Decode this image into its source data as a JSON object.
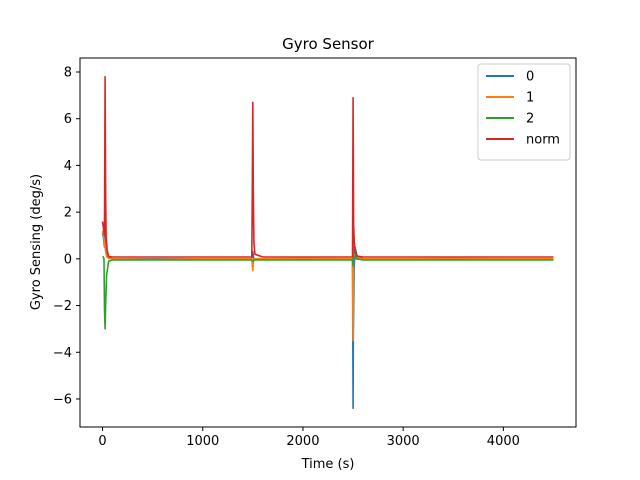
{
  "chart_data": {
    "type": "line",
    "title": "Gyro Sensor",
    "xlabel": "Time (s)",
    "ylabel": "Gyro Sensing (deg/s)",
    "xlim": [
      -225,
      4725
    ],
    "ylim": [
      -7.2,
      8.6
    ],
    "xticks": [
      0,
      1000,
      2000,
      3000,
      4000
    ],
    "yticks": [
      -6,
      -4,
      -2,
      0,
      2,
      4,
      6,
      8
    ],
    "grid": false,
    "legend": {
      "placement": "top-right"
    },
    "series": [
      {
        "name": "0",
        "color": "#1f77b4",
        "x": [
          0,
          10,
          20,
          25,
          30,
          40,
          60,
          100,
          500,
          1000,
          1490,
          1500,
          1505,
          1510,
          1520,
          1600,
          2000,
          2495,
          2500,
          2502,
          2510,
          2520,
          2540,
          2600,
          3000,
          3500,
          4000,
          4500
        ],
        "y": [
          1.1,
          0.9,
          0.5,
          4.5,
          1.0,
          0.3,
          0.05,
          0.0,
          0.0,
          0.0,
          0.0,
          0.3,
          0.1,
          0.0,
          0.0,
          0.0,
          0.0,
          0.0,
          -6.4,
          -3.5,
          -0.5,
          0.5,
          0.1,
          0.0,
          0.0,
          0.0,
          0.0,
          0.0
        ]
      },
      {
        "name": "1",
        "color": "#ff7f0e",
        "x": [
          0,
          10,
          20,
          30,
          40,
          60,
          100,
          500,
          1000,
          1490,
          1500,
          1505,
          1510,
          1520,
          1600,
          2000,
          2495,
          2500,
          2505,
          2515,
          2530,
          2600,
          3000,
          3500,
          4000,
          4500
        ],
        "y": [
          1.2,
          1.0,
          0.7,
          0.3,
          0.1,
          0.02,
          0.0,
          -0.02,
          0.0,
          0.0,
          -0.5,
          -0.2,
          0.0,
          0.0,
          0.0,
          0.02,
          0.0,
          -3.5,
          0.8,
          0.2,
          0.05,
          0.0,
          0.0,
          0.02,
          0.0,
          0.0
        ]
      },
      {
        "name": "2",
        "color": "#2ca02c",
        "x": [
          0,
          5,
          15,
          20,
          25,
          30,
          40,
          60,
          100,
          500,
          1000,
          1490,
          1500,
          1505,
          1510,
          1520,
          1600,
          2000,
          2495,
          2500,
          2505,
          2515,
          2530,
          2600,
          3000,
          3500,
          4000,
          4500
        ],
        "y": [
          0.1,
          0.1,
          0.0,
          -2.2,
          -3.0,
          -2.0,
          -0.7,
          -0.1,
          -0.05,
          -0.05,
          -0.05,
          -0.05,
          -0.1,
          -0.05,
          -0.05,
          -0.05,
          -0.05,
          -0.05,
          -0.05,
          -0.3,
          1.3,
          0.3,
          0.0,
          -0.05,
          -0.05,
          -0.05,
          -0.05,
          -0.05
        ]
      },
      {
        "name": "norm",
        "color": "#d62728",
        "x": [
          0,
          10,
          20,
          25,
          30,
          35,
          45,
          60,
          100,
          500,
          1000,
          1490,
          1495,
          1500,
          1505,
          1510,
          1520,
          1600,
          2000,
          2495,
          2500,
          2505,
          2510,
          2520,
          2540,
          2600,
          3000,
          3500,
          4000,
          4500
        ],
        "y": [
          1.6,
          1.3,
          1.0,
          7.8,
          3.0,
          1.0,
          0.4,
          0.1,
          0.08,
          0.08,
          0.08,
          0.08,
          3.0,
          6.7,
          3.0,
          0.7,
          0.2,
          0.08,
          0.08,
          0.08,
          6.9,
          1.5,
          0.8,
          0.3,
          0.12,
          0.08,
          0.08,
          0.08,
          0.08,
          0.08
        ]
      }
    ]
  }
}
